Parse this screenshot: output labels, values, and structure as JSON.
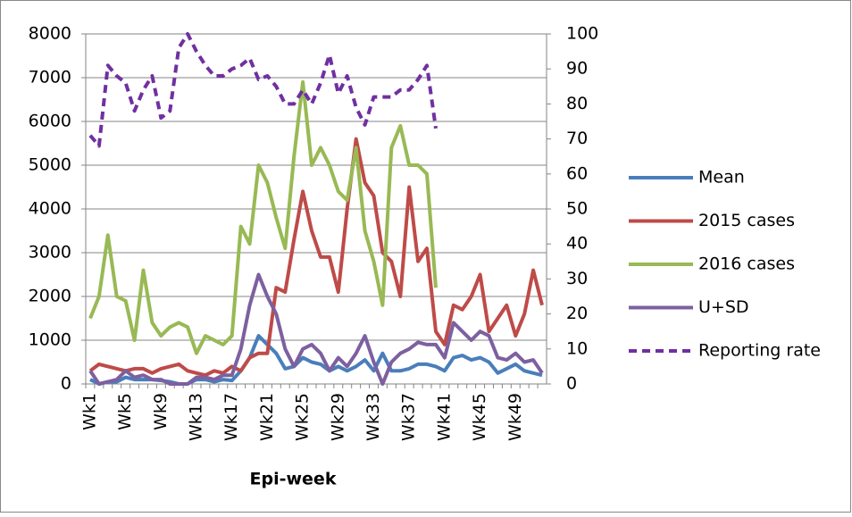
{
  "chart_data": {
    "type": "line",
    "x_label": "Epi-week",
    "categories": [
      "Wk1",
      null,
      null,
      null,
      "Wk5",
      null,
      null,
      null,
      "Wk9",
      null,
      null,
      null,
      "Wk13",
      null,
      null,
      null,
      "Wk17",
      null,
      null,
      null,
      "Wk21",
      null,
      null,
      null,
      "Wk25",
      null,
      null,
      null,
      "Wk29",
      null,
      null,
      null,
      "Wk33",
      null,
      null,
      null,
      "Wk37",
      null,
      null,
      null,
      "Wk41",
      null,
      null,
      null,
      "Wk45",
      null,
      null,
      null,
      "Wk49",
      null,
      null,
      null
    ],
    "ylim": [
      0,
      8000
    ],
    "yticks": [
      0,
      1000,
      2000,
      3000,
      4000,
      5000,
      6000,
      7000,
      8000
    ],
    "y2lim": [
      0,
      100
    ],
    "y2ticks": [
      0,
      10,
      20,
      30,
      40,
      50,
      60,
      70,
      80,
      90,
      100
    ],
    "grid": true,
    "legend": "right",
    "series": [
      {
        "name": "Mean",
        "color": "#4a7ebb",
        "values": [
          100,
          0,
          50,
          50,
          150,
          100,
          100,
          100,
          80,
          50,
          0,
          0,
          100,
          100,
          50,
          100,
          80,
          300,
          600,
          1100,
          900,
          700,
          350,
          400,
          600,
          500,
          450,
          300,
          400,
          300,
          400,
          550,
          300,
          700,
          300,
          300,
          350,
          450,
          450,
          400,
          300,
          600,
          650,
          550,
          600,
          500,
          250,
          350,
          450,
          300,
          250,
          200
        ]
      },
      {
        "name": "2015 cases",
        "color": "#be4b48",
        "values": [
          300,
          450,
          400,
          350,
          300,
          350,
          350,
          250,
          350,
          400,
          450,
          300,
          250,
          200,
          300,
          250,
          400,
          300,
          600,
          700,
          700,
          2200,
          2100,
          3300,
          4400,
          3500,
          2900,
          2900,
          2100,
          4000,
          5600,
          4600,
          4300,
          3000,
          2800,
          2000,
          4500,
          2800,
          3100,
          1200,
          900,
          1800,
          1700,
          2000,
          2500,
          1200,
          1500,
          1800,
          1100,
          1600,
          2600,
          1800
        ]
      },
      {
        "name": "2016 cases",
        "color": "#98b954",
        "values": [
          1500,
          2000,
          3400,
          2000,
          1900,
          1000,
          2600,
          1400,
          1100,
          1300,
          1400,
          1300,
          700,
          1100,
          1000,
          900,
          1100,
          3600,
          3200,
          5000,
          4600,
          3800,
          3100,
          5200,
          6900,
          5000,
          5400,
          5000,
          4400,
          4200,
          5400,
          3500,
          2800,
          1800,
          5400,
          5900,
          5000,
          5000,
          4800,
          2200,
          null,
          null,
          null,
          null,
          null,
          null,
          null,
          null,
          null,
          null,
          null,
          null
        ]
      },
      {
        "name": "U+SD",
        "color": "#7d60a0",
        "values": [
          300,
          0,
          50,
          100,
          300,
          150,
          200,
          100,
          100,
          0,
          0,
          0,
          150,
          150,
          100,
          200,
          200,
          800,
          1800,
          2500,
          2000,
          1600,
          800,
          400,
          800,
          900,
          700,
          300,
          600,
          400,
          700,
          1100,
          500,
          0,
          500,
          700,
          800,
          950,
          900,
          900,
          600,
          1400,
          1200,
          1000,
          1200,
          1100,
          600,
          550,
          700,
          500,
          550,
          250
        ]
      },
      {
        "name": "Reporting rate",
        "color": "#7030a0",
        "line_style": "dashed",
        "axis": "y2",
        "values": [
          71,
          68,
          91,
          88,
          86,
          78,
          84,
          88,
          76,
          78,
          96,
          100,
          95,
          91,
          88,
          88,
          90,
          91,
          93,
          87,
          88,
          85,
          80,
          80,
          84,
          80,
          86,
          94,
          83,
          88,
          79,
          74,
          82,
          82,
          82,
          84,
          84,
          87,
          91,
          73,
          null,
          null,
          null,
          null,
          null,
          null,
          null,
          null,
          null,
          null,
          null,
          null
        ]
      }
    ]
  }
}
